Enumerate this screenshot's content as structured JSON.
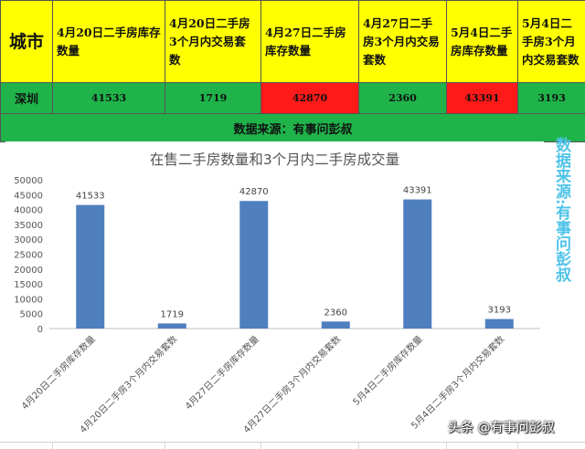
{
  "table": {
    "header": {
      "city": "城市",
      "col1": "4月20日二手房库存数量",
      "col2": "4月20日二手房3个月内交易套数",
      "col3": "4月27日二手房库存数量",
      "col4": "4月27日二手房3个月内交易套数",
      "col5": "5月4日二手房库存数量",
      "col6": "5月4日二手房3个月内交易套数"
    },
    "row": {
      "city": "深圳",
      "v1": "41533",
      "v2": "1719",
      "v3": "42870",
      "v4": "2360",
      "v5": "43391",
      "v6": "3193"
    },
    "source": "数据来源：有事问彭叔"
  },
  "side_caption": "数据来源:有事问彭叔",
  "watermark": "头条 @有事问彭叔",
  "colors": {
    "header_bg": "#ffff00",
    "row_bg": "#1fb34a",
    "highlight": "#ff1a1a",
    "bar": "#4f7fbf",
    "caption": "#4fc3e8"
  },
  "chart_data": {
    "type": "bar",
    "title": "在售二手房数量和3个月内二手房成交量",
    "categories": [
      "4月20日二手房库存数量",
      "4月20日二手房3个月内交易套数",
      "4月27日二手房库存数量",
      "4月27日二手房3个月内交易套数",
      "5月4日二手房库存数量",
      "5月4日二手房3个月内交易套数"
    ],
    "values": [
      41533,
      1719,
      42870,
      2360,
      43391,
      3193
    ],
    "data_labels": [
      "41533",
      "1719",
      "42870",
      "2360",
      "43391",
      "3193"
    ],
    "ylim": [
      0,
      50000
    ],
    "yticks": [
      "0",
      "5000",
      "10000",
      "15000",
      "20000",
      "25000",
      "30000",
      "35000",
      "40000",
      "45000",
      "50000"
    ],
    "xlabel": "",
    "ylabel": "",
    "grid": false,
    "legend": "none"
  }
}
